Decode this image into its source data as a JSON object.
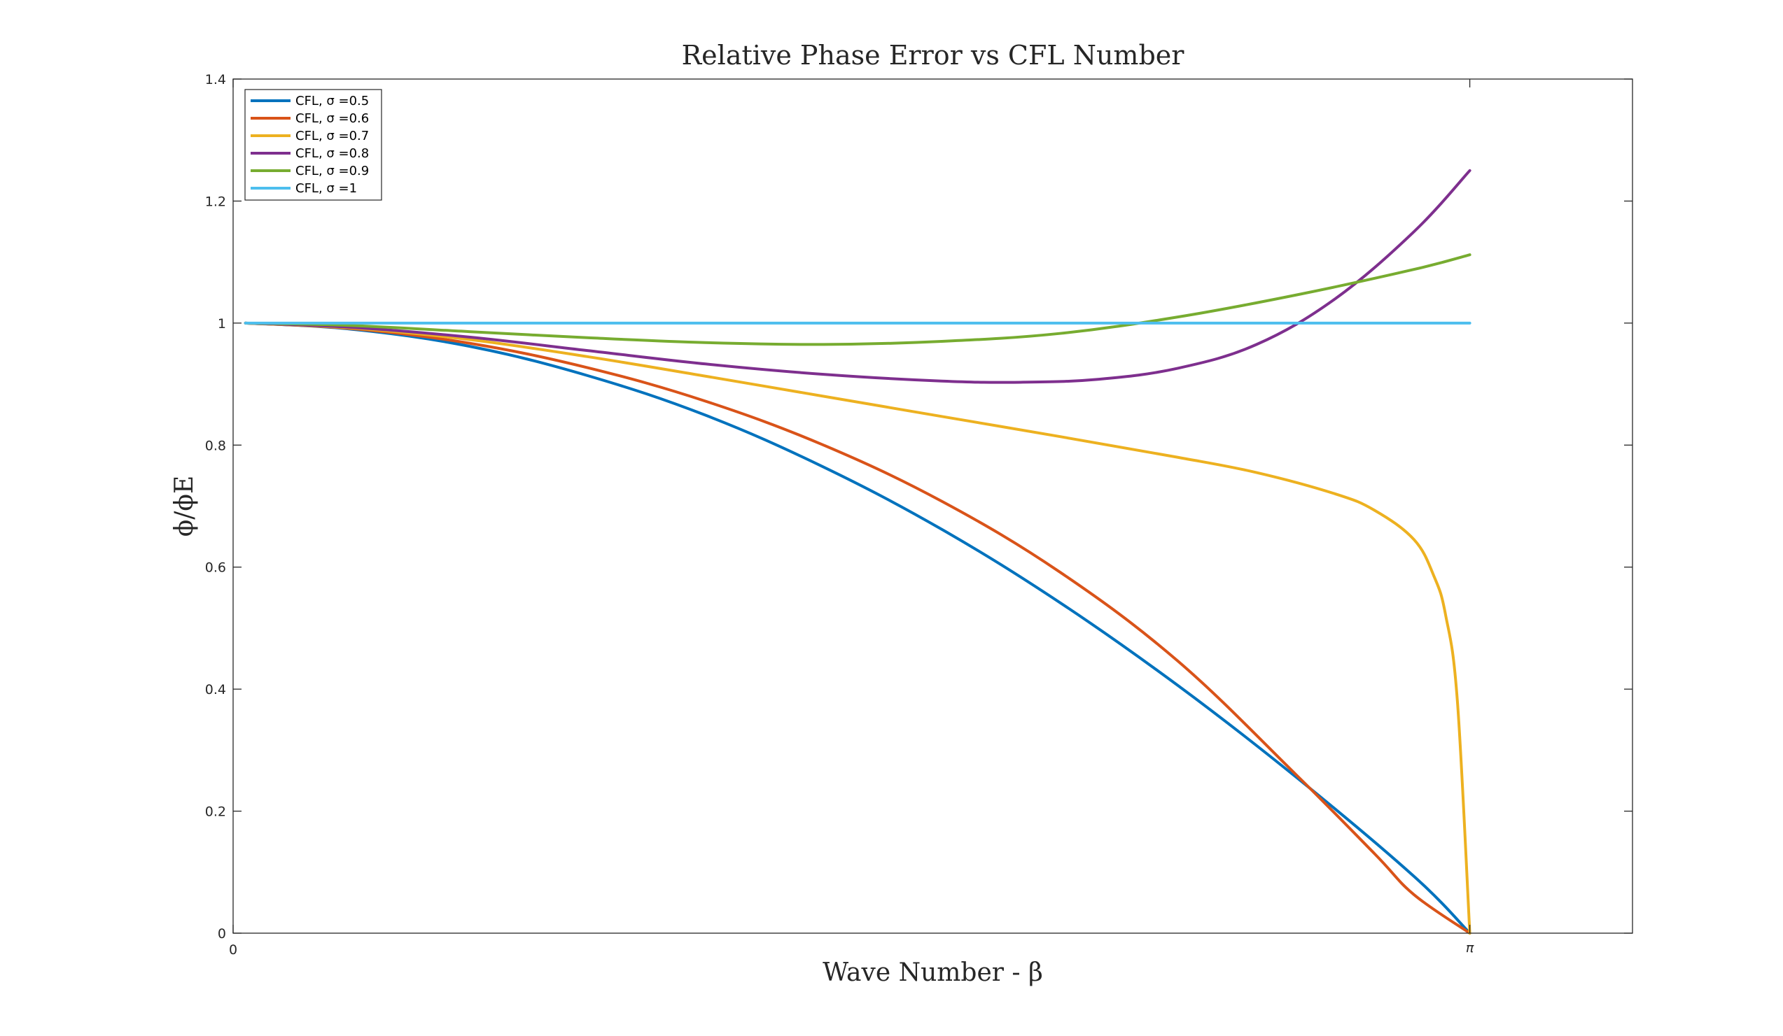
{
  "chart_data": {
    "type": "line",
    "title": "Relative Phase Error vs CFL Number",
    "xlabel": "Wave Number - β",
    "ylabel": "ϕ/ϕE",
    "xlim": [
      0,
      3.5549
    ],
    "ylim": [
      0,
      1.4
    ],
    "xticks": [
      {
        "value": 0,
        "label": "0"
      },
      {
        "value": 3.14159,
        "label": "π"
      }
    ],
    "yticks": [
      {
        "value": 0,
        "label": "0"
      },
      {
        "value": 0.2,
        "label": "0.2"
      },
      {
        "value": 0.4,
        "label": "0.4"
      },
      {
        "value": 0.6,
        "label": "0.6"
      },
      {
        "value": 0.8,
        "label": "0.8"
      },
      {
        "value": 1.0,
        "label": "1"
      },
      {
        "value": 1.2,
        "label": "1.2"
      },
      {
        "value": 1.4,
        "label": "1.4"
      }
    ],
    "grid": false,
    "legend_position": "top-left",
    "series": [
      {
        "name": "CFL, σ =0.5",
        "color": "#0072BD",
        "x": [
          0.0314,
          0.3,
          0.6,
          0.9,
          1.2,
          1.5,
          1.8,
          2.1,
          2.4,
          2.7,
          3.0,
          3.1416
        ],
        "y": [
          1.0,
          0.99,
          0.962,
          0.914,
          0.849,
          0.764,
          0.662,
          0.542,
          0.406,
          0.256,
          0.093,
          0.0
        ]
      },
      {
        "name": "CFL, σ =0.6",
        "color": "#D95319",
        "x": [
          0.0314,
          0.3,
          0.6,
          0.9,
          1.2,
          1.5,
          1.8,
          2.1,
          2.4,
          2.7,
          2.9,
          3.0,
          3.1416
        ],
        "y": [
          1.0,
          0.991,
          0.967,
          0.927,
          0.872,
          0.8,
          0.708,
          0.592,
          0.446,
          0.26,
          0.13,
          0.063,
          0.0
        ]
      },
      {
        "name": "CFL, σ =0.7",
        "color": "#EDB120",
        "x": [
          0.0314,
          0.3,
          0.6,
          0.9,
          1.2,
          1.5,
          1.8,
          2.1,
          2.4,
          2.6,
          2.8,
          2.9,
          3.0,
          3.05,
          3.08,
          3.11,
          3.1416
        ],
        "y": [
          1.0,
          0.992,
          0.973,
          0.945,
          0.913,
          0.88,
          0.847,
          0.814,
          0.78,
          0.755,
          0.72,
          0.693,
          0.645,
          0.586,
          0.522,
          0.381,
          0.0
        ]
      },
      {
        "name": "CFL, σ =0.8",
        "color": "#7E2F8E",
        "x": [
          0.0314,
          0.3,
          0.6,
          0.9,
          1.2,
          1.5,
          1.8,
          2.0,
          2.2,
          2.4,
          2.6,
          2.8,
          3.0,
          3.1416
        ],
        "y": [
          1.0,
          0.993,
          0.977,
          0.955,
          0.933,
          0.916,
          0.905,
          0.903,
          0.908,
          0.926,
          0.965,
          1.04,
          1.15,
          1.25
        ]
      },
      {
        "name": "CFL, σ =0.9",
        "color": "#77AC30",
        "x": [
          0.0314,
          0.3,
          0.6,
          0.9,
          1.2,
          1.5,
          1.8,
          2.1,
          2.4,
          2.7,
          3.0,
          3.1416
        ],
        "y": [
          1.0,
          0.996,
          0.986,
          0.976,
          0.968,
          0.965,
          0.97,
          0.983,
          1.01,
          1.046,
          1.088,
          1.112
        ]
      },
      {
        "name": "CFL, σ =1",
        "color": "#4DBEEE",
        "x": [
          0.0314,
          3.1416
        ],
        "y": [
          1.0,
          1.0
        ]
      }
    ]
  }
}
